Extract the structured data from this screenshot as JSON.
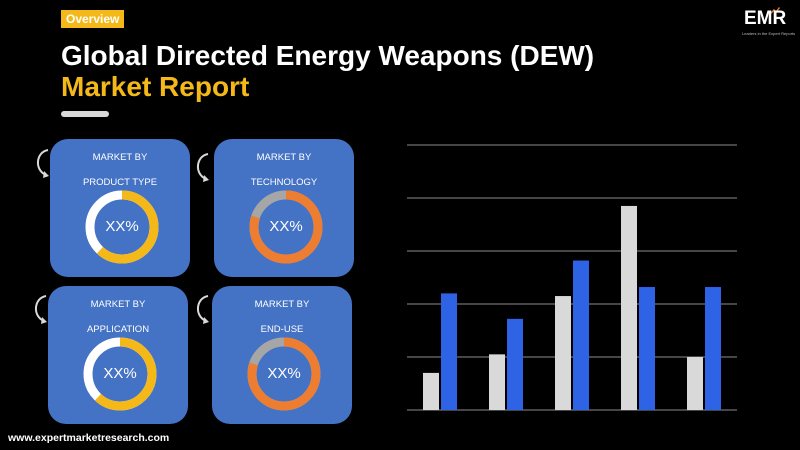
{
  "header": {
    "badge": "Overview",
    "title_line1": "Global Directed Energy Weapons (DEW)",
    "title_line2": "Market Report"
  },
  "logo": {
    "text": "EMR",
    "tagline": "Leaders in the Expert Reports"
  },
  "cards": [
    {
      "line1": "MARKET BY",
      "line2": "PRODUCT TYPE",
      "value": "XX%",
      "ring_color": "#f5b819",
      "fill_fraction": 0.62
    },
    {
      "line1": "MARKET BY",
      "line2": "TECHNOLOGY",
      "value": "XX%",
      "ring_color": "#ed7d31",
      "fill_fraction": 0.8
    },
    {
      "line1": "MARKET BY",
      "line2": "APPLICATION",
      "value": "XX%",
      "ring_color": "#f5b819",
      "fill_fraction": 0.62
    },
    {
      "line1": "MARKET BY",
      "line2": "END-USE",
      "value": "XX%",
      "ring_color": "#ed7d31",
      "fill_fraction": 0.8
    }
  ],
  "colors": {
    "card_bg": "#4472c4",
    "accent_yellow": "#f5b819",
    "accent_orange": "#ed7d31",
    "ring_track": "#ffffff",
    "ring_track_orange": "#a6a6a6",
    "series_gray": "#d9d9d9",
    "series_blue": "#2e63e6"
  },
  "chart_data": {
    "type": "bar",
    "title": "",
    "xlabel": "",
    "ylabel": "",
    "categories": [
      "",
      "",
      "",
      "",
      ""
    ],
    "series": [
      {
        "values": [
          0.7,
          1.05,
          2.15,
          3.85,
          1.0
        ],
        "color": "#d9d9d9"
      },
      {
        "values": [
          2.2,
          1.72,
          2.82,
          2.32,
          2.32
        ],
        "color": "#2e63e6"
      }
    ],
    "ylim": [
      0,
      5
    ],
    "y_gridlines": [
      0,
      1,
      2,
      3,
      4,
      5
    ],
    "grid": true,
    "legend": "none"
  },
  "footer": {
    "url": "www.expertmarketresearch.com"
  }
}
